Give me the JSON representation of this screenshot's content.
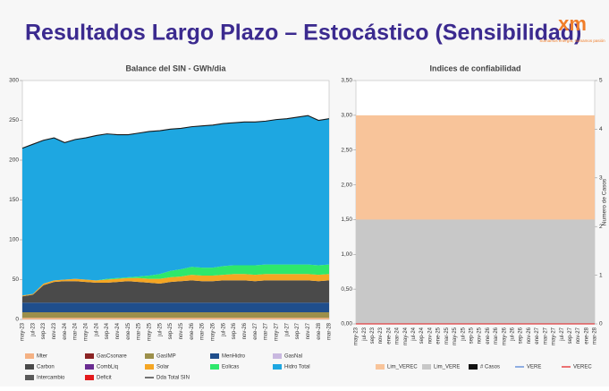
{
  "slide": {
    "title": "Resultados Largo Plazo – Estocástico (Sensibilidad)",
    "logo": "xm",
    "tagline": "Sumamos energía, sumamos pasión"
  },
  "chart_data": [
    {
      "type": "area",
      "title": "Balance del SIN - GWh/dia",
      "stacked": true,
      "grid": false,
      "categories": [
        "may-23",
        "jul-23",
        "sep-23",
        "nov-23",
        "ene-24",
        "mar-24",
        "may-24",
        "jul-24",
        "sep-24",
        "nov-24",
        "ene-25",
        "mar-25",
        "may-25",
        "jul-25",
        "sep-25",
        "nov-25",
        "ene-26",
        "mar-26",
        "may-26",
        "jul-26",
        "sep-26",
        "nov-26",
        "ene-27",
        "mar-27",
        "may-27",
        "jul-27",
        "sep-27",
        "nov-27",
        "ene-28",
        "mar-28"
      ],
      "ylim": [
        0,
        300
      ],
      "yticks": [
        0,
        50,
        100,
        150,
        200,
        250,
        300
      ],
      "series": [
        {
          "name": "Mter",
          "type": "area",
          "color": "#f4b183",
          "values": [
            2,
            2,
            2,
            2,
            2,
            2,
            2,
            2,
            2,
            2,
            2,
            2,
            2,
            2,
            2,
            2,
            2,
            2,
            2,
            2,
            2,
            2,
            2,
            2,
            2,
            2,
            2,
            2,
            2,
            2
          ]
        },
        {
          "name": "GasCsonare",
          "type": "area",
          "color": "#8b2323",
          "values": [
            0,
            0,
            0,
            0,
            0,
            0,
            0,
            0,
            0,
            0,
            0,
            0,
            0,
            0,
            0,
            0,
            0,
            0,
            0,
            0,
            0,
            0,
            0,
            0,
            0,
            0,
            0,
            0,
            0,
            0
          ]
        },
        {
          "name": "GasIMP",
          "type": "area",
          "color": "#9c8f4a",
          "values": [
            7,
            7,
            7,
            7,
            7,
            7,
            7,
            7,
            7,
            7,
            7,
            7,
            7,
            7,
            7,
            7,
            7,
            7,
            7,
            7,
            7,
            7,
            7,
            7,
            7,
            7,
            7,
            7,
            7,
            7
          ]
        },
        {
          "name": "MenHidro",
          "type": "area",
          "color": "#1f4e8c",
          "values": [
            12,
            12,
            12,
            12,
            12,
            12,
            12,
            12,
            12,
            12,
            12,
            12,
            12,
            12,
            12,
            12,
            12,
            12,
            12,
            12,
            12,
            12,
            12,
            12,
            12,
            12,
            12,
            12,
            12,
            12
          ]
        },
        {
          "name": "GasNal",
          "type": "area",
          "color": "#c9b8e0",
          "values": [
            0,
            0,
            0,
            0,
            0,
            0,
            0,
            0,
            0,
            0,
            0,
            0,
            0,
            0,
            0,
            0,
            0,
            0,
            0,
            0,
            0,
            0,
            0,
            0,
            0,
            0,
            0,
            0,
            0,
            0
          ]
        },
        {
          "name": "Carbon",
          "type": "area",
          "color": "#4a4a4a",
          "values": [
            8,
            10,
            22,
            26,
            27,
            27,
            26,
            25,
            25,
            26,
            27,
            26,
            25,
            24,
            26,
            27,
            28,
            27,
            27,
            28,
            28,
            28,
            27,
            28,
            28,
            28,
            28,
            28,
            27,
            28
          ]
        },
        {
          "name": "CombLiq",
          "type": "area",
          "color": "#6a2c91",
          "values": [
            0,
            0,
            0,
            0,
            0,
            0,
            0,
            0,
            0,
            0,
            0,
            0,
            0,
            0,
            0,
            0,
            0,
            0,
            0,
            0,
            0,
            0,
            0,
            0,
            0,
            0,
            0,
            0,
            0,
            0
          ]
        },
        {
          "name": "Solar",
          "type": "area",
          "color": "#f5a623",
          "values": [
            1,
            1,
            2,
            2,
            2,
            3,
            3,
            3,
            4,
            4,
            4,
            5,
            5,
            6,
            6,
            6,
            7,
            7,
            7,
            7,
            8,
            8,
            8,
            8,
            8,
            8,
            8,
            8,
            8,
            8
          ]
        },
        {
          "name": "Eolicas",
          "type": "area",
          "color": "#2ee86b",
          "values": [
            0,
            0,
            0,
            0,
            0,
            0,
            0,
            0,
            1,
            1,
            1,
            2,
            4,
            6,
            8,
            9,
            10,
            10,
            10,
            11,
            11,
            11,
            12,
            12,
            12,
            12,
            12,
            12,
            12,
            12
          ]
        },
        {
          "name": "Hidro Total",
          "type": "area",
          "color": "#1ea7e1",
          "values": [
            185,
            188,
            180,
            179,
            172,
            175,
            178,
            182,
            182,
            180,
            179,
            180,
            181,
            180,
            178,
            177,
            176,
            178,
            179,
            179,
            179,
            180,
            180,
            180,
            182,
            183,
            185,
            187,
            182,
            183
          ]
        },
        {
          "name": "Intercambio",
          "type": "area",
          "color": "#5a5a5a",
          "values": [
            0,
            0,
            0,
            0,
            0,
            0,
            0,
            0,
            0,
            0,
            0,
            0,
            0,
            0,
            0,
            0,
            0,
            0,
            0,
            0,
            0,
            0,
            0,
            0,
            0,
            0,
            0,
            0,
            0,
            0
          ]
        },
        {
          "name": "Deficit",
          "type": "area",
          "color": "#e31a1c",
          "values": [
            0,
            0,
            0,
            0,
            0,
            0,
            0,
            0,
            0,
            0,
            0,
            0,
            0,
            0,
            0,
            0,
            0,
            0,
            0,
            0,
            0,
            0,
            0,
            0,
            0,
            0,
            0,
            0,
            0,
            0
          ]
        },
        {
          "name": "Dda Total SIN",
          "type": "line",
          "color": "#1a1a1a",
          "values": [
            215,
            220,
            225,
            228,
            222,
            226,
            228,
            231,
            233,
            232,
            232,
            234,
            236,
            237,
            239,
            240,
            242,
            243,
            244,
            246,
            247,
            248,
            248,
            249,
            251,
            252,
            254,
            256,
            250,
            252
          ]
        }
      ]
    },
    {
      "type": "area",
      "title": "Indices de confiabilidad",
      "stacked": false,
      "grid": false,
      "categories": [
        "may-23",
        "jul-23",
        "sep-23",
        "nov-23",
        "ene-24",
        "mar-24",
        "may-24",
        "jul-24",
        "sep-24",
        "nov-24",
        "ene-25",
        "mar-25",
        "may-25",
        "jul-25",
        "sep-25",
        "nov-25",
        "ene-26",
        "mar-26",
        "may-26",
        "jul-26",
        "sep-26",
        "nov-26",
        "ene-27",
        "mar-27",
        "may-27",
        "jul-27",
        "sep-27",
        "nov-27",
        "ene-28",
        "mar-28"
      ],
      "ylim": [
        0,
        3.5
      ],
      "yticks": [
        {
          "value": 0,
          "label": "0,00"
        },
        {
          "value": 0.5,
          "label": "0,50"
        },
        {
          "value": 1,
          "label": "1,00"
        },
        {
          "value": 1.5,
          "label": "1,50"
        },
        {
          "value": 2,
          "label": "2,00"
        },
        {
          "value": 2.5,
          "label": "2,50"
        },
        {
          "value": 3,
          "label": "3,00"
        },
        {
          "value": 3.5,
          "label": "3,50"
        }
      ],
      "y2lim": [
        0,
        5
      ],
      "y2ticks": [
        0,
        1,
        2,
        3,
        4,
        5
      ],
      "y2label": "Numero de Casos",
      "series": [
        {
          "name": "Lim_VEREC",
          "type": "area",
          "color": "#f8c49a",
          "values": [
            3,
            3,
            3,
            3,
            3,
            3,
            3,
            3,
            3,
            3,
            3,
            3,
            3,
            3,
            3,
            3,
            3,
            3,
            3,
            3,
            3,
            3,
            3,
            3,
            3,
            3,
            3,
            3,
            3,
            3
          ]
        },
        {
          "name": "Lim_VERE",
          "type": "area",
          "color": "#c8c8c8",
          "values": [
            1.5,
            1.5,
            1.5,
            1.5,
            1.5,
            1.5,
            1.5,
            1.5,
            1.5,
            1.5,
            1.5,
            1.5,
            1.5,
            1.5,
            1.5,
            1.5,
            1.5,
            1.5,
            1.5,
            1.5,
            1.5,
            1.5,
            1.5,
            1.5,
            1.5,
            1.5,
            1.5,
            1.5,
            1.5,
            1.5
          ]
        },
        {
          "name": "# Casos",
          "type": "area",
          "axis": "y2",
          "color": "#111111",
          "values": [
            0,
            0,
            0,
            0,
            0,
            0,
            0,
            0,
            0,
            0,
            0,
            0,
            0,
            0,
            0,
            0,
            0,
            0,
            0,
            0,
            0,
            0,
            0,
            0,
            0,
            0,
            0,
            0,
            0,
            0
          ]
        },
        {
          "name": "VERE",
          "type": "line",
          "color": "#4a7fd4",
          "values": [
            0,
            0,
            0,
            0,
            0,
            0,
            0,
            0,
            0,
            0,
            0,
            0,
            0,
            0,
            0,
            0,
            0,
            0,
            0,
            0,
            0,
            0,
            0,
            0,
            0,
            0,
            0,
            0,
            0,
            0
          ]
        },
        {
          "name": "VEREC",
          "type": "line",
          "color": "#e31a1c",
          "values": [
            0,
            0,
            0,
            0,
            0,
            0,
            0,
            0,
            0,
            0,
            0,
            0,
            0,
            0,
            0,
            0,
            0,
            0,
            0,
            0,
            0,
            0,
            0,
            0,
            0,
            0,
            0,
            0,
            0,
            0
          ]
        }
      ]
    }
  ]
}
